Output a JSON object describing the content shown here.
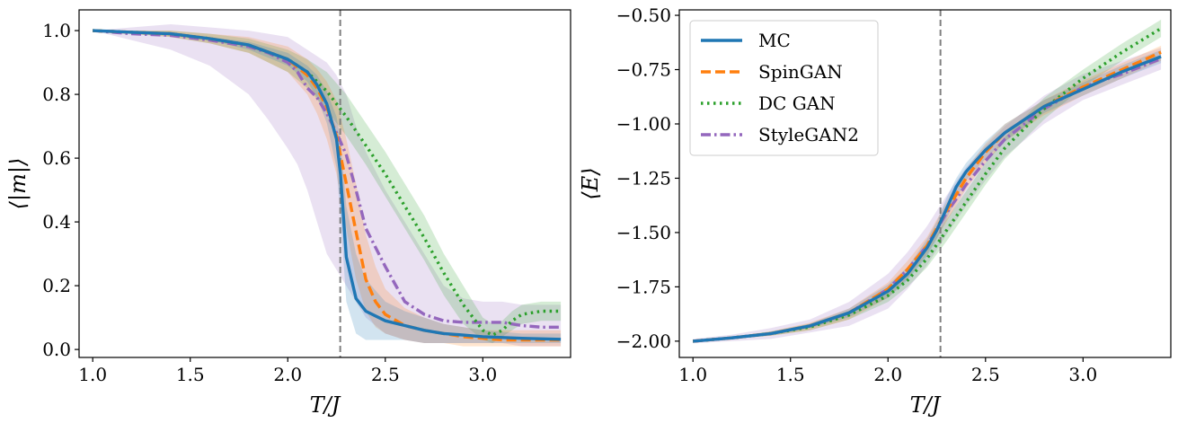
{
  "chart_data": [
    {
      "type": "line",
      "xlabel": "T/J",
      "ylabel": "⟨|m|⟩",
      "xlim": [
        0.93,
        3.45
      ],
      "ylim": [
        -0.025,
        1.065
      ],
      "xticks": [
        "1.0",
        "1.5",
        "2.0",
        "2.5",
        "3.0"
      ],
      "xtick_values": [
        1.0,
        1.5,
        2.0,
        2.5,
        3.0
      ],
      "yticks": [
        "0.0",
        "0.2",
        "0.4",
        "0.6",
        "0.8",
        "1.0"
      ],
      "ytick_values": [
        0.0,
        0.2,
        0.4,
        0.6,
        0.8,
        1.0
      ],
      "vline_x": 2.269,
      "grid": false,
      "legend": false,
      "series": [
        {
          "name": "StyleGAN2",
          "color": "#9467bd",
          "dash": "dashdot",
          "x": [
            1.0,
            1.2,
            1.4,
            1.6,
            1.8,
            1.9,
            2.0,
            2.05,
            2.1,
            2.15,
            2.2,
            2.25,
            2.3,
            2.35,
            2.4,
            2.5,
            2.6,
            2.7,
            2.8,
            2.9,
            3.0,
            3.1,
            3.2,
            3.3,
            3.4
          ],
          "y": [
            1.0,
            0.99,
            0.985,
            0.97,
            0.95,
            0.93,
            0.9,
            0.87,
            0.82,
            0.79,
            0.74,
            0.68,
            0.61,
            0.5,
            0.38,
            0.26,
            0.15,
            0.11,
            0.09,
            0.085,
            0.085,
            0.085,
            0.075,
            0.07,
            0.07
          ],
          "lower": [
            1.0,
            0.97,
            0.94,
            0.89,
            0.8,
            0.72,
            0.63,
            0.58,
            0.5,
            0.4,
            0.3,
            0.25,
            0.2,
            0.15,
            0.1,
            0.05,
            0.03,
            0.02,
            0.02,
            0.02,
            0.02,
            0.02,
            0.01,
            0.01,
            0.01
          ],
          "upper": [
            1.0,
            1.01,
            1.02,
            1.01,
            1.0,
            0.99,
            0.98,
            0.96,
            0.94,
            0.92,
            0.9,
            0.86,
            0.8,
            0.7,
            0.62,
            0.5,
            0.4,
            0.3,
            0.2,
            0.16,
            0.15,
            0.15,
            0.14,
            0.14,
            0.14
          ]
        },
        {
          "name": "DC GAN",
          "color": "#2ca02c",
          "dash": "dotted",
          "x": [
            1.0,
            1.2,
            1.4,
            1.6,
            1.8,
            2.0,
            2.1,
            2.2,
            2.3,
            2.4,
            2.5,
            2.6,
            2.7,
            2.8,
            2.9,
            3.0,
            3.05,
            3.1,
            3.15,
            3.2,
            3.3,
            3.4
          ],
          "y": [
            1.0,
            0.995,
            0.99,
            0.975,
            0.955,
            0.91,
            0.87,
            0.81,
            0.73,
            0.64,
            0.55,
            0.45,
            0.35,
            0.24,
            0.14,
            0.06,
            0.045,
            0.06,
            0.09,
            0.11,
            0.12,
            0.12
          ],
          "lower": [
            1.0,
            0.99,
            0.98,
            0.96,
            0.93,
            0.87,
            0.82,
            0.75,
            0.67,
            0.58,
            0.48,
            0.38,
            0.28,
            0.17,
            0.08,
            0.03,
            0.02,
            0.04,
            0.06,
            0.08,
            0.09,
            0.09
          ],
          "upper": [
            1.0,
            1.0,
            1.0,
            0.99,
            0.975,
            0.94,
            0.91,
            0.87,
            0.8,
            0.71,
            0.62,
            0.52,
            0.42,
            0.3,
            0.2,
            0.1,
            0.08,
            0.09,
            0.12,
            0.14,
            0.15,
            0.15
          ]
        },
        {
          "name": "SpinGAN",
          "color": "#ff7f0e",
          "dash": "dashed",
          "x": [
            1.0,
            1.2,
            1.4,
            1.6,
            1.8,
            2.0,
            2.1,
            2.15,
            2.2,
            2.25,
            2.3,
            2.35,
            2.4,
            2.45,
            2.5,
            2.6,
            2.7,
            2.8,
            2.9,
            3.0,
            3.1,
            3.2,
            3.3,
            3.4
          ],
          "y": [
            1.0,
            0.995,
            0.99,
            0.975,
            0.955,
            0.91,
            0.86,
            0.82,
            0.76,
            0.67,
            0.52,
            0.37,
            0.22,
            0.15,
            0.11,
            0.075,
            0.06,
            0.05,
            0.04,
            0.035,
            0.03,
            0.03,
            0.03,
            0.03
          ],
          "lower": [
            1.0,
            0.99,
            0.98,
            0.96,
            0.93,
            0.87,
            0.8,
            0.74,
            0.66,
            0.55,
            0.38,
            0.22,
            0.12,
            0.07,
            0.05,
            0.03,
            0.02,
            0.02,
            0.01,
            0.01,
            0.01,
            0.01,
            0.01,
            0.01
          ],
          "upper": [
            1.0,
            1.0,
            1.0,
            0.99,
            0.98,
            0.95,
            0.91,
            0.88,
            0.84,
            0.78,
            0.66,
            0.52,
            0.36,
            0.26,
            0.19,
            0.13,
            0.1,
            0.08,
            0.07,
            0.06,
            0.06,
            0.06,
            0.06,
            0.06
          ]
        },
        {
          "name": "MC",
          "color": "#1f77b4",
          "dash": "solid",
          "x": [
            1.0,
            1.2,
            1.4,
            1.6,
            1.8,
            2.0,
            2.1,
            2.15,
            2.2,
            2.25,
            2.27,
            2.3,
            2.35,
            2.4,
            2.5,
            2.6,
            2.7,
            2.8,
            2.9,
            3.0,
            3.2,
            3.4
          ],
          "y": [
            1.0,
            0.995,
            0.99,
            0.975,
            0.955,
            0.91,
            0.87,
            0.83,
            0.77,
            0.66,
            0.55,
            0.29,
            0.16,
            0.12,
            0.09,
            0.075,
            0.06,
            0.05,
            0.045,
            0.04,
            0.035,
            0.032
          ],
          "lower": [
            1.0,
            0.99,
            0.985,
            0.97,
            0.94,
            0.89,
            0.84,
            0.79,
            0.71,
            0.57,
            0.42,
            0.15,
            0.05,
            0.03,
            0.03,
            0.03,
            0.02,
            0.02,
            0.02,
            0.02,
            0.02,
            0.02
          ],
          "upper": [
            1.0,
            1.0,
            0.995,
            0.98,
            0.965,
            0.93,
            0.89,
            0.86,
            0.81,
            0.73,
            0.66,
            0.45,
            0.3,
            0.22,
            0.15,
            0.12,
            0.1,
            0.08,
            0.07,
            0.06,
            0.05,
            0.05
          ]
        }
      ]
    },
    {
      "type": "line",
      "xlabel": "T/J",
      "ylabel": "⟨E⟩",
      "xlim": [
        0.93,
        3.45
      ],
      "ylim": [
        -2.075,
        -0.475
      ],
      "xticks": [
        "1.0",
        "1.5",
        "2.0",
        "2.5",
        "3.0"
      ],
      "xtick_values": [
        1.0,
        1.5,
        2.0,
        2.5,
        3.0
      ],
      "yticks": [
        "−0.50",
        "−0.75",
        "−1.00",
        "−1.25",
        "−1.50",
        "−1.75",
        "−2.00"
      ],
      "ytick_values": [
        -0.5,
        -0.75,
        -1.0,
        -1.25,
        -1.5,
        -1.75,
        -2.0
      ],
      "vline_x": 2.269,
      "grid": false,
      "legend": true,
      "legend_position": "upper-left",
      "series": [
        {
          "name": "StyleGAN2",
          "color": "#9467bd",
          "dash": "dashdot",
          "x": [
            1.0,
            1.2,
            1.4,
            1.6,
            1.8,
            2.0,
            2.1,
            2.2,
            2.3,
            2.4,
            2.5,
            2.6,
            2.8,
            3.0,
            3.2,
            3.4
          ],
          "y": [
            -2.0,
            -1.985,
            -1.965,
            -1.93,
            -1.87,
            -1.76,
            -1.67,
            -1.56,
            -1.41,
            -1.28,
            -1.17,
            -1.07,
            -0.93,
            -0.83,
            -0.77,
            -0.7
          ],
          "lower": [
            -2.01,
            -2.0,
            -1.99,
            -1.96,
            -1.93,
            -1.85,
            -1.76,
            -1.65,
            -1.51,
            -1.38,
            -1.26,
            -1.15,
            -1.0,
            -0.89,
            -0.82,
            -0.75
          ],
          "upper": [
            -1.99,
            -1.97,
            -1.94,
            -1.9,
            -1.82,
            -1.69,
            -1.59,
            -1.47,
            -1.33,
            -1.2,
            -1.1,
            -1.01,
            -0.87,
            -0.77,
            -0.71,
            -0.65
          ]
        },
        {
          "name": "DC GAN",
          "color": "#2ca02c",
          "dash": "dotted",
          "x": [
            1.0,
            1.2,
            1.4,
            1.6,
            1.8,
            2.0,
            2.1,
            2.2,
            2.3,
            2.4,
            2.5,
            2.6,
            2.8,
            3.0,
            3.2,
            3.4
          ],
          "y": [
            -2.0,
            -1.985,
            -1.965,
            -1.935,
            -1.88,
            -1.79,
            -1.72,
            -1.62,
            -1.49,
            -1.36,
            -1.23,
            -1.11,
            -0.93,
            -0.79,
            -0.67,
            -0.56
          ],
          "lower": [
            -2.0,
            -1.99,
            -1.975,
            -1.95,
            -1.9,
            -1.82,
            -1.75,
            -1.66,
            -1.54,
            -1.41,
            -1.28,
            -1.16,
            -0.98,
            -0.83,
            -0.71,
            -0.6
          ],
          "upper": [
            -1.995,
            -1.98,
            -1.955,
            -1.92,
            -1.86,
            -1.76,
            -1.69,
            -1.58,
            -1.44,
            -1.31,
            -1.18,
            -1.06,
            -0.88,
            -0.75,
            -0.63,
            -0.52
          ]
        },
        {
          "name": "SpinGAN",
          "color": "#ff7f0e",
          "dash": "dashed",
          "x": [
            1.0,
            1.2,
            1.4,
            1.6,
            1.8,
            2.0,
            2.1,
            2.2,
            2.3,
            2.4,
            2.5,
            2.6,
            2.8,
            3.0,
            3.2,
            3.4
          ],
          "y": [
            -2.0,
            -1.985,
            -1.965,
            -1.93,
            -1.87,
            -1.76,
            -1.67,
            -1.56,
            -1.4,
            -1.25,
            -1.13,
            -1.04,
            -0.92,
            -0.83,
            -0.75,
            -0.67
          ],
          "lower": [
            -2.0,
            -1.99,
            -1.975,
            -1.95,
            -1.9,
            -1.8,
            -1.71,
            -1.6,
            -1.45,
            -1.3,
            -1.18,
            -1.08,
            -0.96,
            -0.87,
            -0.79,
            -0.71
          ],
          "upper": [
            -1.995,
            -1.98,
            -1.955,
            -1.915,
            -1.85,
            -1.73,
            -1.63,
            -1.52,
            -1.36,
            -1.21,
            -1.09,
            -1.0,
            -0.89,
            -0.8,
            -0.72,
            -0.64
          ]
        },
        {
          "name": "MC",
          "color": "#1f77b4",
          "dash": "solid",
          "x": [
            1.0,
            1.2,
            1.4,
            1.6,
            1.8,
            2.0,
            2.1,
            2.2,
            2.25,
            2.3,
            2.35,
            2.4,
            2.5,
            2.6,
            2.8,
            3.0,
            3.2,
            3.4
          ],
          "y": [
            -2.0,
            -1.985,
            -1.965,
            -1.93,
            -1.87,
            -1.77,
            -1.69,
            -1.57,
            -1.49,
            -1.39,
            -1.29,
            -1.22,
            -1.12,
            -1.04,
            -0.92,
            -0.84,
            -0.76,
            -0.69
          ],
          "lower": [
            -2.0,
            -1.99,
            -1.97,
            -1.94,
            -1.89,
            -1.8,
            -1.72,
            -1.61,
            -1.53,
            -1.44,
            -1.34,
            -1.26,
            -1.16,
            -1.08,
            -0.95,
            -0.87,
            -0.79,
            -0.72
          ],
          "upper": [
            -1.995,
            -1.98,
            -1.96,
            -1.92,
            -1.85,
            -1.74,
            -1.66,
            -1.53,
            -1.45,
            -1.34,
            -1.25,
            -1.18,
            -1.08,
            -1.0,
            -0.89,
            -0.81,
            -0.73,
            -0.66
          ]
        }
      ]
    }
  ],
  "legend_order": [
    "MC",
    "SpinGAN",
    "DC GAN",
    "StyleGAN2"
  ]
}
